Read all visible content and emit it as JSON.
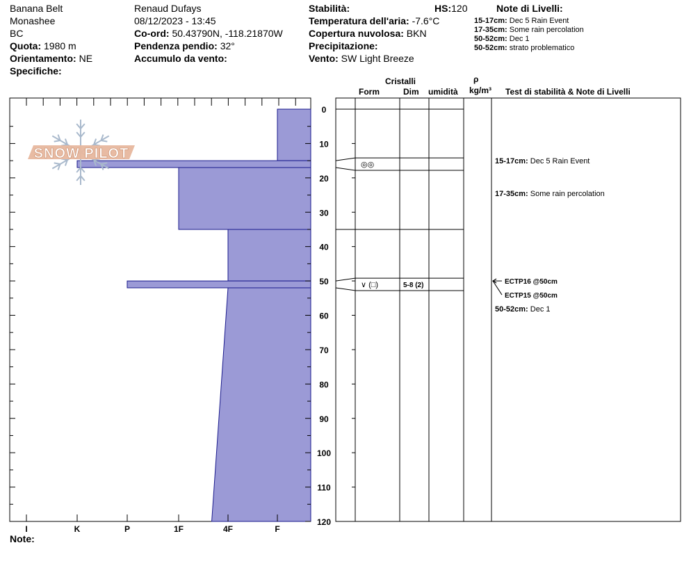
{
  "site": {
    "name": "Banana Belt",
    "range": "Monashee",
    "region": "BC",
    "elevation_label": "Quota:",
    "elevation_value": "1980 m",
    "aspect_label": "Orientamento:",
    "aspect_value": "NE",
    "specifics_label": "Specifiche:"
  },
  "observer": {
    "name": "Renaud Dufays",
    "datetime": "08/12/2023 - 13:45",
    "coord_label": "Co-ord:",
    "coord_value": "50.43790N, -118.21870W",
    "slope_label": "Pendenza pendio:",
    "slope_value": "32°",
    "wind_loading_label": "Accumulo da vento:"
  },
  "conditions": {
    "stability_label": "Stabilità:",
    "hs_label": "HS:",
    "hs_value": "120",
    "air_temp_label": "Temperatura dell'aria:",
    "air_temp_value": "-7.6°C",
    "sky_label": "Copertura nuvolosa:",
    "sky_value": "BKN",
    "precip_label": "Precipitazione:",
    "wind_label": "Vento:",
    "wind_value": "SW Light Breeze"
  },
  "layer_notes_header": {
    "title": "Note di Livelli:",
    "items": [
      {
        "range": "15-17cm:",
        "text": "Dec 5 Rain Event"
      },
      {
        "range": "17-35cm:",
        "text": "Some rain percolation"
      },
      {
        "range": "50-52cm:",
        "text": "Dec 1"
      },
      {
        "range": "50-52cm:",
        "text": "strato problematico"
      }
    ]
  },
  "logo": {
    "text": "SNOW PILOT"
  },
  "columns": {
    "crystals": "Cristalli",
    "form": "Form",
    "dim": "Dim",
    "moisture": "umidità",
    "rho": "ρ",
    "density_unit": "kg/m³",
    "tests_notes": "Test di stabilità & Note di Livelli"
  },
  "footer": {
    "notes_label": "Note:"
  },
  "chart_data": {
    "type": "snow-profile",
    "hardness_scale": [
      "I",
      "K",
      "P",
      "1F",
      "4F",
      "F"
    ],
    "depth_ticks": [
      0,
      10,
      20,
      30,
      40,
      50,
      60,
      70,
      80,
      90,
      100,
      110,
      120
    ],
    "depth_range_cm": [
      0,
      120
    ],
    "colors": {
      "fill": "#9b9ad6",
      "stroke": "#1a1a8c"
    },
    "hardness_profile": [
      {
        "top": 0,
        "bottom": 15,
        "hardness_index": 5
      },
      {
        "top": 15,
        "bottom": 17,
        "hardness_index": 1
      },
      {
        "top": 17,
        "bottom": 35,
        "hardness_index": 3
      },
      {
        "top": 35,
        "bottom": 50,
        "hardness_index": 4
      },
      {
        "top": 50,
        "bottom": 52,
        "hardness_index": 2
      },
      {
        "top": 52,
        "bottom": 120,
        "hardness_index_top": 4,
        "hardness_index_bottom": 3.67
      }
    ],
    "layer_boundaries": [
      0,
      15,
      17,
      35,
      50,
      52,
      120
    ],
    "layers": [
      {
        "top": 15,
        "bottom": 17,
        "form": "◎◎",
        "dim": "",
        "note_range": "15-17cm:",
        "note": "Dec 5 Rain Event"
      },
      {
        "top": 50,
        "bottom": 52,
        "form": "∨ (□)",
        "dim": "5-8 (2)",
        "note_range": "50-52cm:",
        "note": "Dec 1"
      }
    ],
    "notes_extra": [
      {
        "depth": 17,
        "range": "17-35cm:",
        "text": "Some rain percolation"
      }
    ],
    "tests": [
      {
        "depth": 50,
        "text": "ECTP16 @50cm"
      },
      {
        "depth": 50,
        "text": "ECTP15 @50cm"
      }
    ]
  }
}
